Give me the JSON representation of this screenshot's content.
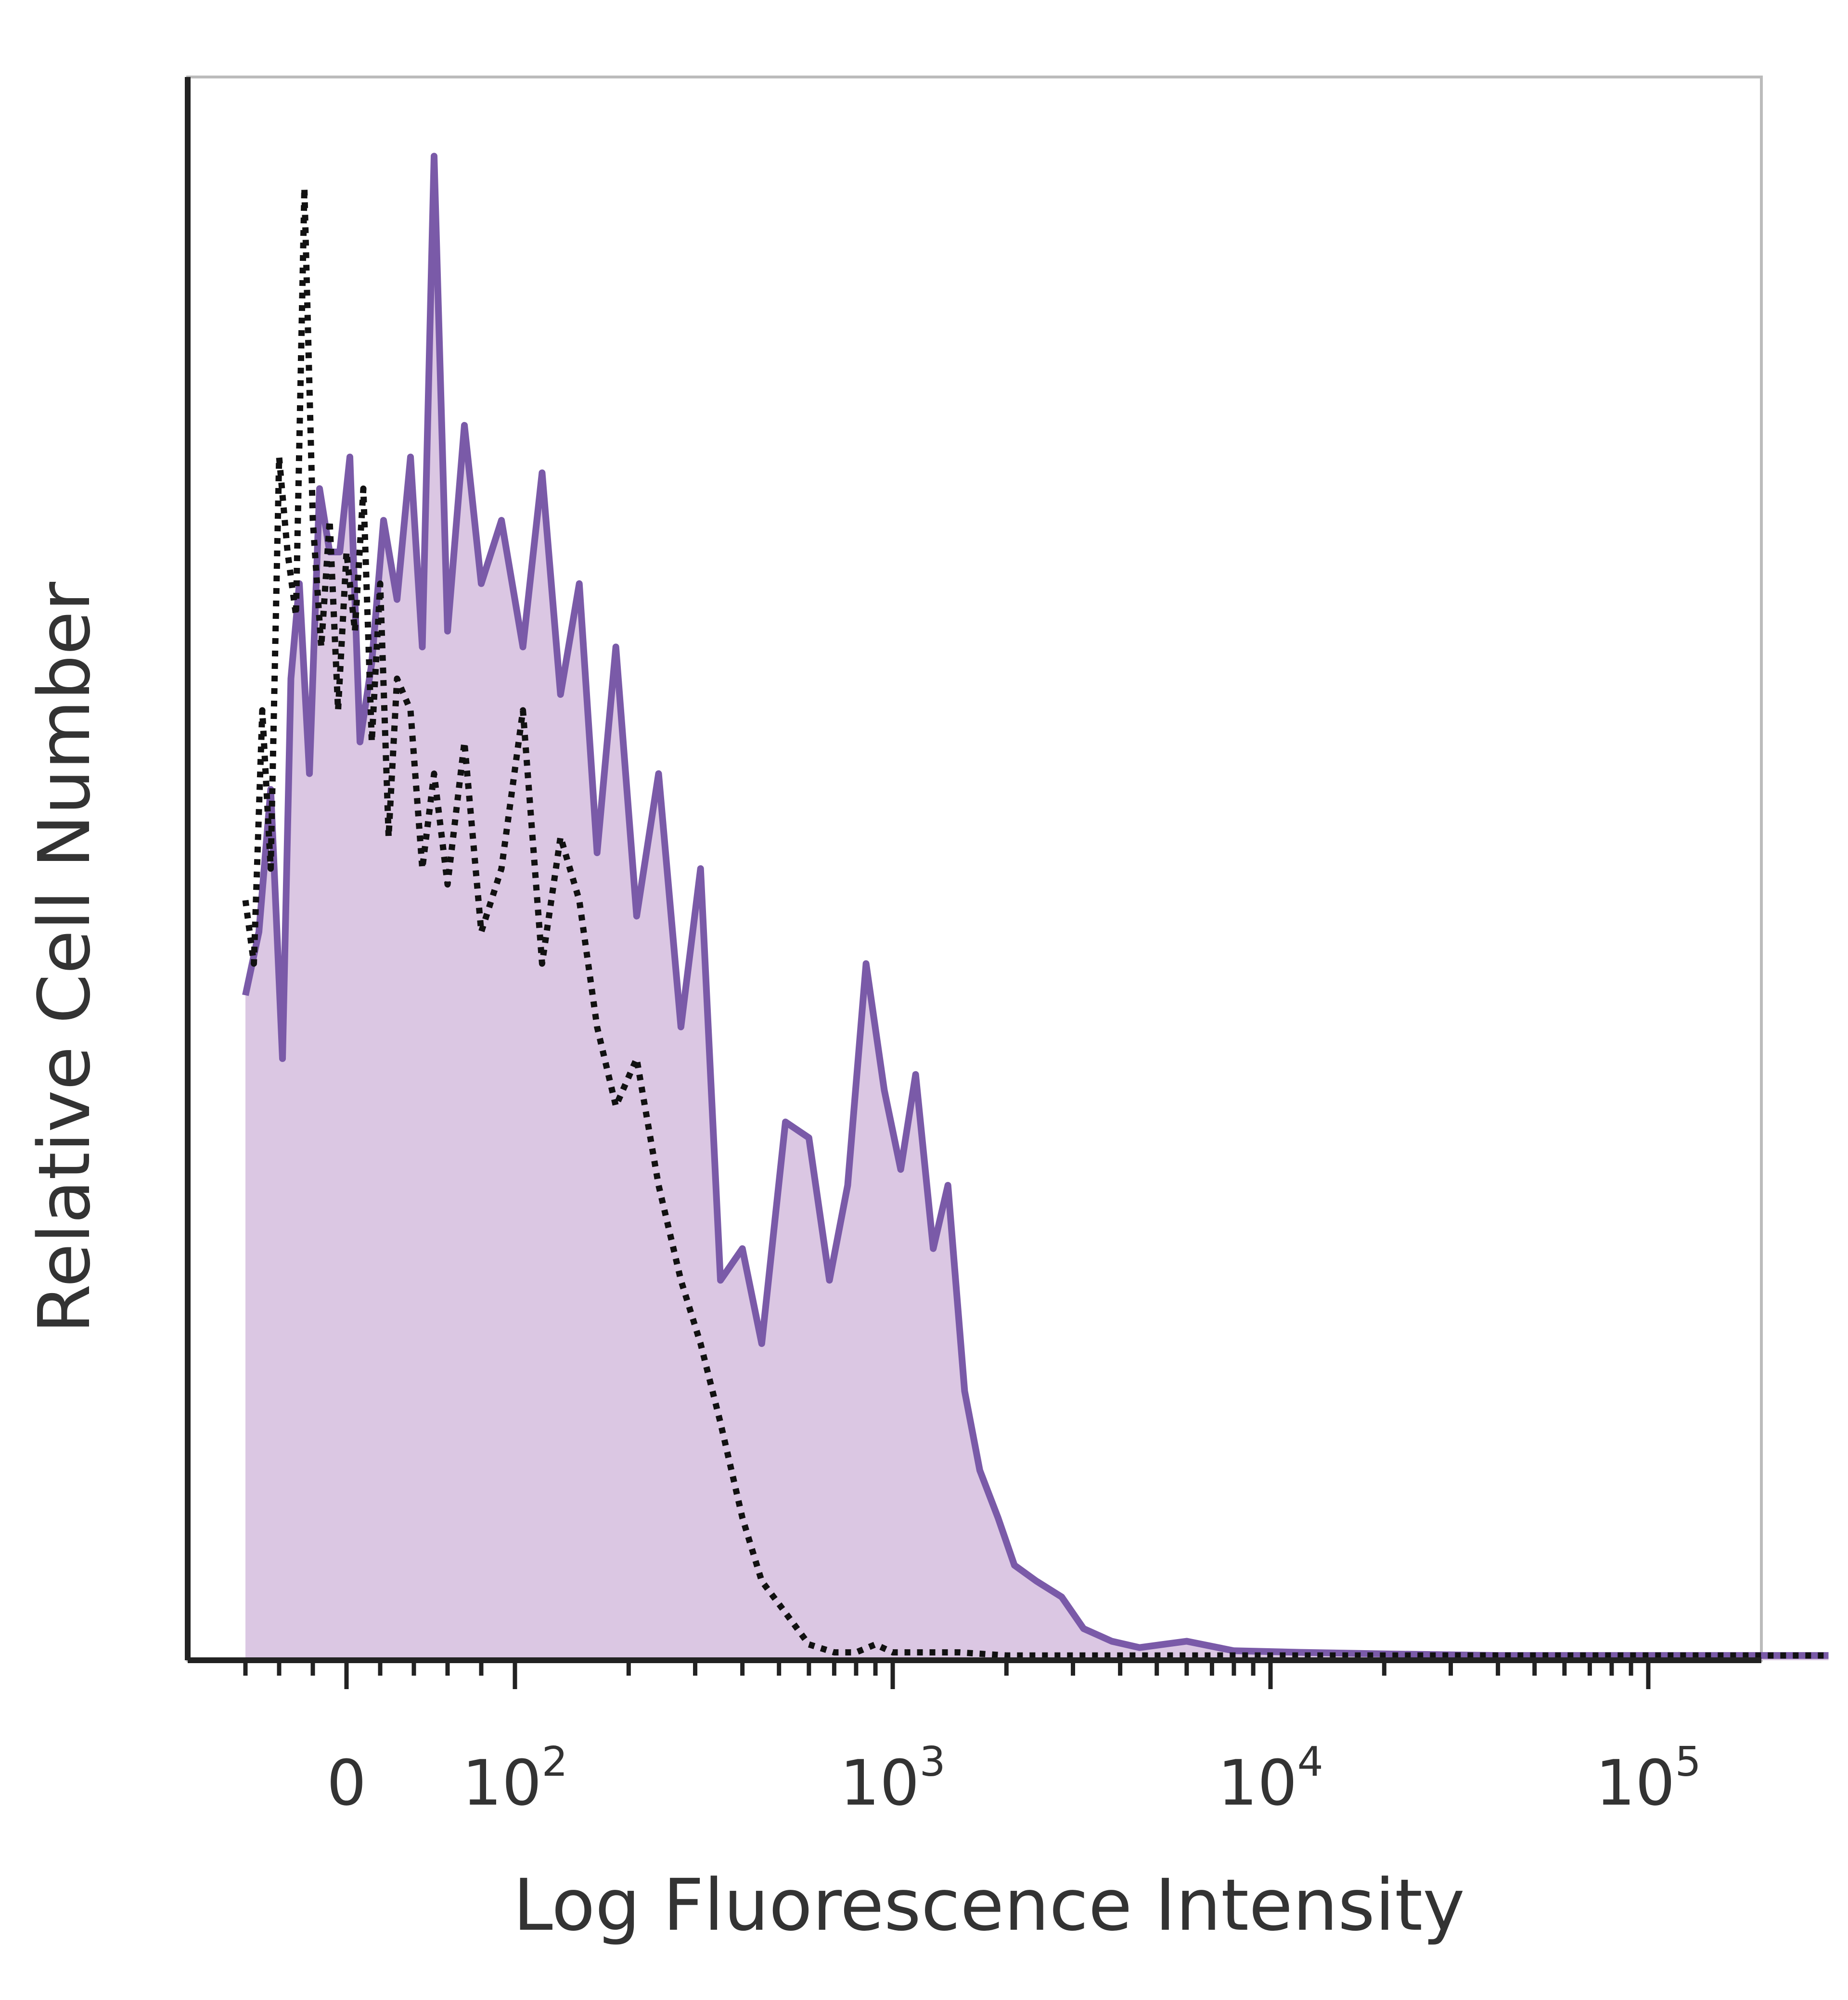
{
  "chart_data": {
    "type": "area",
    "title": "",
    "xlabel": "Log Fluorescence Intensity",
    "ylabel": "Relative Cell Number",
    "x_scale": "biexponential",
    "xlim": [
      -60,
      300000
    ],
    "ylim": [
      0,
      100
    ],
    "grid": false,
    "colors": {
      "stained_line": "#7a5aa8",
      "stained_fill": "#dbc7e3",
      "control_line": "#111111",
      "axis": "#222222",
      "frame": "#bbbbbb"
    },
    "x_ticks": [
      {
        "value": 0,
        "base": "0",
        "exp": ""
      },
      {
        "value": 100,
        "base": "10",
        "exp": "2"
      },
      {
        "value": 1000,
        "base": "10",
        "exp": "3"
      },
      {
        "value": 10000,
        "base": "10",
        "exp": "4"
      },
      {
        "value": 100000,
        "base": "10",
        "exp": "5"
      }
    ],
    "series": [
      {
        "style": "filled-solid",
        "x": [
          -60,
          -52,
          -45,
          -38,
          -33,
          -28,
          -22,
          -16,
          -10,
          -4,
          2,
          8,
          15,
          22,
          30,
          38,
          45,
          52,
          60,
          70,
          80,
          92,
          105,
          118,
          132,
          148,
          165,
          185,
          210,
          240,
          275,
          310,
          350,
          400,
          450,
          520,
          600,
          680,
          760,
          850,
          950,
          1050,
          1150,
          1280,
          1400,
          1550,
          1700,
          1900,
          2100,
          2400,
          2800,
          3200,
          3800,
          4500,
          6000,
          8000,
          12000,
          20000,
          40000,
          80000,
          150000,
          300000
        ],
        "y": [
          42,
          46,
          55,
          38,
          62,
          68,
          56,
          74,
          70,
          70,
          76,
          58,
          63,
          72,
          67,
          76,
          64,
          95,
          65,
          78,
          68,
          72,
          64,
          75,
          61,
          68,
          51,
          64,
          47,
          56,
          40,
          50,
          24,
          26,
          20,
          34,
          33,
          24,
          30,
          44,
          36,
          31,
          37,
          26,
          30,
          17,
          12,
          9,
          6,
          5,
          4,
          2,
          1.2,
          0.8,
          1.2,
          0.6,
          0.5,
          0.4,
          0.3,
          0.3,
          0.3,
          0.3
        ]
      },
      {
        "style": "dotted",
        "x": [
          -60,
          -55,
          -50,
          -45,
          -40,
          -35,
          -30,
          -25,
          -20,
          -15,
          -10,
          -5,
          0,
          5,
          10,
          15,
          20,
          25,
          30,
          38,
          45,
          52,
          60,
          70,
          80,
          92,
          105,
          118,
          132,
          148,
          165,
          185,
          210,
          240,
          275,
          310,
          350,
          400,
          450,
          520,
          600,
          700,
          800,
          900,
          1000,
          1200,
          1500,
          2000,
          3000,
          5000,
          10000,
          30000,
          100000,
          300000
        ],
        "y": [
          48,
          44,
          60,
          50,
          76,
          70,
          66,
          93,
          72,
          64,
          72,
          60,
          70,
          65,
          74,
          58,
          68,
          52,
          62,
          60,
          50,
          56,
          49,
          58,
          46,
          50,
          60,
          44,
          52,
          48,
          40,
          35,
          38,
          30,
          24,
          20,
          15,
          9,
          5,
          3,
          1,
          0.5,
          0.5,
          1,
          0.5,
          0.5,
          0.5,
          0.3,
          0.3,
          0.3,
          0.3,
          0.3,
          0.3,
          0.3
        ]
      }
    ]
  }
}
